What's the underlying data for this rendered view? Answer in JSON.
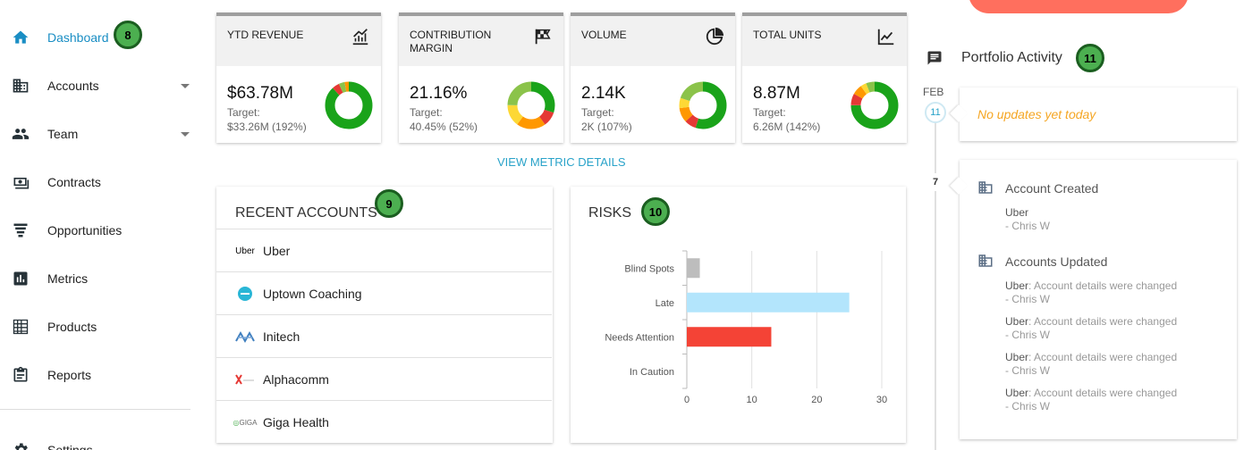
{
  "sidebar": {
    "items": [
      {
        "id": "dashboard",
        "label": "Dashboard",
        "icon": "home-icon",
        "active": true
      },
      {
        "id": "accounts",
        "label": "Accounts",
        "icon": "building-icon",
        "expandable": true
      },
      {
        "id": "team",
        "label": "Team",
        "icon": "people-icon",
        "expandable": true
      },
      {
        "id": "contracts",
        "label": "Contracts",
        "icon": "cash-icon"
      },
      {
        "id": "opportunities",
        "label": "Opportunities",
        "icon": "funnel-icon"
      },
      {
        "id": "metrics",
        "label": "Metrics",
        "icon": "bar-chart-icon"
      },
      {
        "id": "products",
        "label": "Products",
        "icon": "table-icon"
      },
      {
        "id": "reports",
        "label": "Reports",
        "icon": "clipboard-icon"
      },
      {
        "id": "settings",
        "label": "Settings",
        "icon": "gear-icon"
      }
    ]
  },
  "badges": {
    "b8": "8",
    "b9": "9",
    "b10": "10",
    "b11": "11"
  },
  "kpis": [
    {
      "title": "YTD REVENUE",
      "value": "$63.78M",
      "target_label": "Target:",
      "target_value": "$33.26M (192%)",
      "icon": "bar-chart-up-icon"
    },
    {
      "title": "CONTRIBUTION MARGIN",
      "value": "21.16%",
      "target_label": "Target:",
      "target_value": "40.45% (52%)",
      "icon": "checkered-flag-icon"
    },
    {
      "title": "VOLUME",
      "value": "2.14K",
      "target_label": "Target:",
      "target_value": "2K (107%)",
      "icon": "pie-chart-icon"
    },
    {
      "title": "TOTAL UNITS",
      "value": "8.87M",
      "target_label": "Target:",
      "target_value": "6.26M (142%)",
      "icon": "line-chart-icon"
    }
  ],
  "kpi_donuts": [
    [
      {
        "value": 88,
        "color": "#1aa31a"
      },
      {
        "value": 5,
        "color": "#e53935"
      },
      {
        "value": 4,
        "color": "#8bc34a"
      },
      {
        "value": 3,
        "color": "#ff9800"
      }
    ],
    [
      {
        "value": 30,
        "color": "#1aa31a"
      },
      {
        "value": 10,
        "color": "#e53935"
      },
      {
        "value": 20,
        "color": "#ff9800"
      },
      {
        "value": 15,
        "color": "#fdd835"
      },
      {
        "value": 25,
        "color": "#8bc34a"
      }
    ],
    [
      {
        "value": 55,
        "color": "#1aa31a"
      },
      {
        "value": 8,
        "color": "#e53935"
      },
      {
        "value": 10,
        "color": "#ff9800"
      },
      {
        "value": 7,
        "color": "#fdd835"
      },
      {
        "value": 20,
        "color": "#8bc34a"
      }
    ],
    [
      {
        "value": 75,
        "color": "#1aa31a"
      },
      {
        "value": 8,
        "color": "#e53935"
      },
      {
        "value": 7,
        "color": "#ff9800"
      },
      {
        "value": 4,
        "color": "#fdd835"
      },
      {
        "value": 6,
        "color": "#8bc34a"
      }
    ]
  ],
  "view_metric_details": "VIEW METRIC DETAILS",
  "recent_accounts": {
    "title": "RECENT ACCOUNTS",
    "items": [
      {
        "name": "Uber",
        "logo": "Uber"
      },
      {
        "name": "Uptown Coaching",
        "logo": ""
      },
      {
        "name": "Initech",
        "logo": ""
      },
      {
        "name": "Alphacomm",
        "logo": ""
      },
      {
        "name": "Giga Health",
        "logo": "GIGA"
      }
    ]
  },
  "risks": {
    "title": "RISKS"
  },
  "chart_data": {
    "type": "bar",
    "orientation": "horizontal",
    "categories": [
      "Blind Spots",
      "Late",
      "Needs Attention",
      "In Caution"
    ],
    "values": [
      2,
      25,
      13,
      0
    ],
    "colors": [
      "#bdbdbd",
      "#b3e5fc",
      "#f44336",
      "#cccccc"
    ],
    "xlim": [
      0,
      30
    ],
    "xticks": [
      0,
      10,
      20,
      30
    ],
    "grid": true
  },
  "activity": {
    "title": "Portfolio Activity",
    "month": "FEB",
    "day1": "11",
    "empty_text": "No updates yet today",
    "day2": "7",
    "groups": [
      {
        "heading": "Account Created",
        "entries": [
          {
            "account": "Uber",
            "detail": "",
            "author": "- Chris W"
          }
        ]
      },
      {
        "heading": "Accounts Updated",
        "entries": [
          {
            "account": "Uber",
            "detail": ": Account details were changed",
            "author": "- Chris W"
          },
          {
            "account": "Uber",
            "detail": ": Account details were changed",
            "author": "- Chris W"
          },
          {
            "account": "Uber",
            "detail": ": Account details were changed",
            "author": "- Chris W"
          },
          {
            "account": "Uber",
            "detail": ": Account details were changed",
            "author": "- Chris W"
          }
        ]
      }
    ]
  }
}
